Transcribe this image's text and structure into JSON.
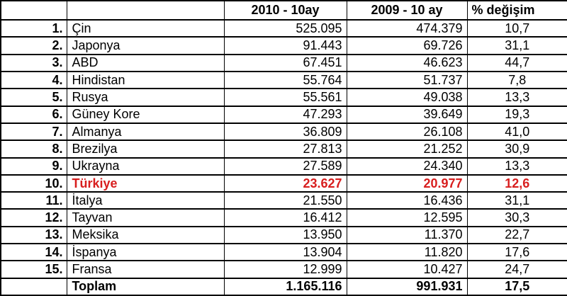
{
  "colors": {
    "highlight_red": "#d81e1e",
    "border": "#000000",
    "background": "#ffffff",
    "text": "#000000"
  },
  "table": {
    "columns": [
      {
        "key": "rank",
        "label": ""
      },
      {
        "key": "country",
        "label": ""
      },
      {
        "key": "v2010",
        "label": "2010 - 10ay"
      },
      {
        "key": "v2009",
        "label": "2009 - 10 ay"
      },
      {
        "key": "pct",
        "label": "% değişim"
      }
    ],
    "rows": [
      {
        "rank": "1.",
        "country": "Çin",
        "v2010": "525.095",
        "v2009": "474.379",
        "pct": "10,7",
        "highlight": false,
        "total": false
      },
      {
        "rank": "2.",
        "country": "Japonya",
        "v2010": "91.443",
        "v2009": "69.726",
        "pct": "31,1",
        "highlight": false,
        "total": false
      },
      {
        "rank": "3.",
        "country": "ABD",
        "v2010": "67.451",
        "v2009": "46.623",
        "pct": "44,7",
        "highlight": false,
        "total": false
      },
      {
        "rank": "4.",
        "country": "Hindistan",
        "v2010": "55.764",
        "v2009": "51.737",
        "pct": "7,8",
        "highlight": false,
        "total": false
      },
      {
        "rank": "5.",
        "country": "Rusya",
        "v2010": "55.561",
        "v2009": "49.038",
        "pct": "13,3",
        "highlight": false,
        "total": false
      },
      {
        "rank": "6.",
        "country": "Güney Kore",
        "v2010": "47.293",
        "v2009": "39.649",
        "pct": "19,3",
        "highlight": false,
        "total": false
      },
      {
        "rank": "7.",
        "country": "Almanya",
        "v2010": "36.809",
        "v2009": "26.108",
        "pct": "41,0",
        "highlight": false,
        "total": false
      },
      {
        "rank": "8.",
        "country": "Brezilya",
        "v2010": "27.813",
        "v2009": "21.252",
        "pct": "30,9",
        "highlight": false,
        "total": false
      },
      {
        "rank": "9.",
        "country": "Ukrayna",
        "v2010": "27.589",
        "v2009": "24.340",
        "pct": "13,3",
        "highlight": false,
        "total": false
      },
      {
        "rank": "10.",
        "country": "Türkiye",
        "v2010": "23.627",
        "v2009": "20.977",
        "pct": "12,6",
        "highlight": true,
        "total": false
      },
      {
        "rank": "11.",
        "country": "İtalya",
        "v2010": "21.550",
        "v2009": "16.436",
        "pct": "31,1",
        "highlight": false,
        "total": false
      },
      {
        "rank": "12.",
        "country": "Tayvan",
        "v2010": "16.412",
        "v2009": "12.595",
        "pct": "30,3",
        "highlight": false,
        "total": false
      },
      {
        "rank": "13.",
        "country": "Meksika",
        "v2010": "13.950",
        "v2009": "11.370",
        "pct": "22,7",
        "highlight": false,
        "total": false
      },
      {
        "rank": "14.",
        "country": "İspanya",
        "v2010": "13.904",
        "v2009": "11.820",
        "pct": "17,6",
        "highlight": false,
        "total": false
      },
      {
        "rank": "15.",
        "country": "Fransa",
        "v2010": "12.999",
        "v2009": "10.427",
        "pct": "24,7",
        "highlight": false,
        "total": false
      },
      {
        "rank": "",
        "country": "Toplam",
        "v2010": "1.165.116",
        "v2009": "991.931",
        "pct": "17,5",
        "highlight": false,
        "total": true
      }
    ]
  },
  "chart_data": {
    "type": "table",
    "title": "",
    "categories": [
      "Çin",
      "Japonya",
      "ABD",
      "Hindistan",
      "Rusya",
      "Güney Kore",
      "Almanya",
      "Brezilya",
      "Ukrayna",
      "Türkiye",
      "İtalya",
      "Tayvan",
      "Meksika",
      "İspanya",
      "Fransa"
    ],
    "ranks": [
      1,
      2,
      3,
      4,
      5,
      6,
      7,
      8,
      9,
      10,
      11,
      12,
      13,
      14,
      15
    ],
    "series": [
      {
        "name": "2010 - 10ay",
        "values": [
          525095,
          91443,
          67451,
          55764,
          55561,
          47293,
          36809,
          27813,
          27589,
          23627,
          21550,
          16412,
          13950,
          13904,
          12999
        ]
      },
      {
        "name": "2009 - 10 ay",
        "values": [
          474379,
          69726,
          46623,
          51737,
          49038,
          39649,
          26108,
          21252,
          24340,
          20977,
          16436,
          12595,
          11370,
          11820,
          10427
        ]
      },
      {
        "name": "% değişim",
        "values": [
          10.7,
          31.1,
          44.7,
          7.8,
          13.3,
          19.3,
          41.0,
          30.9,
          13.3,
          12.6,
          31.1,
          30.3,
          22.7,
          17.6,
          24.7
        ]
      }
    ],
    "total_row": {
      "label": "Toplam",
      "v2010": 1165116,
      "v2009": 991931,
      "pct": 17.5
    },
    "highlighted_category": "Türkiye"
  }
}
